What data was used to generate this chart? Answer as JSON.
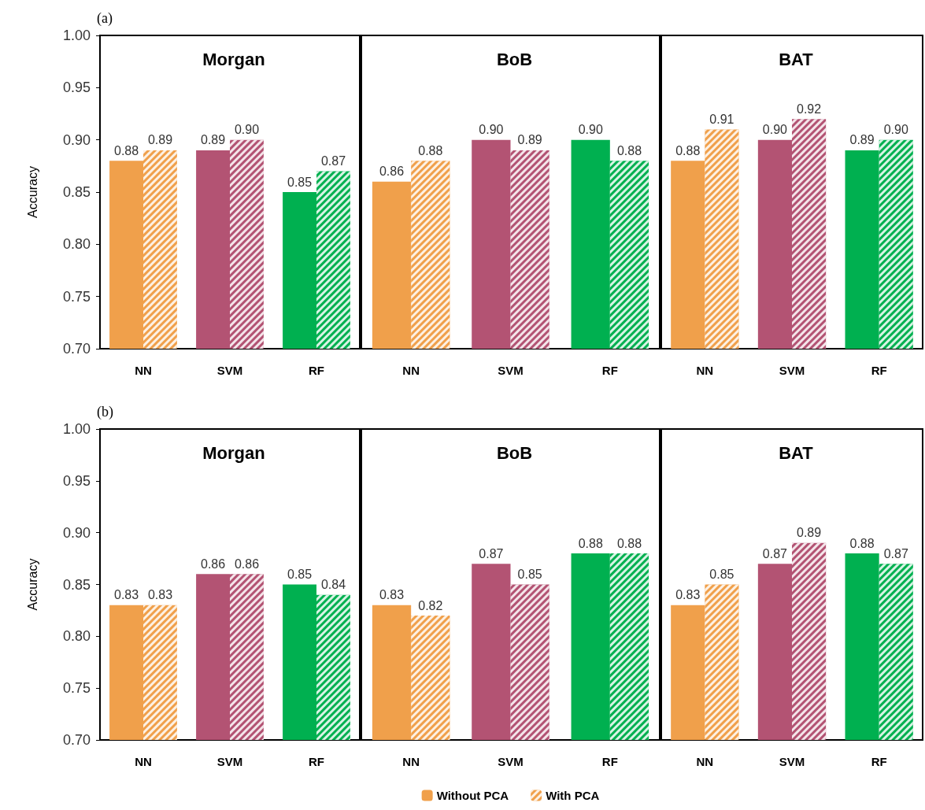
{
  "chart_data": [
    {
      "type": "bar",
      "title": "Morgan",
      "annotations": [
        "(a)"
      ],
      "ylabel": "Accuracy",
      "categories": [
        "NN",
        "SVM",
        "RF"
      ],
      "ylim": [
        0.7,
        1.0
      ],
      "yticks": [
        {
          "value": 0.7,
          "label": "0.70"
        },
        {
          "value": 0.75,
          "label": "0.75"
        },
        {
          "value": 0.8,
          "label": "0.80"
        },
        {
          "value": 0.85,
          "label": "0.85"
        },
        {
          "value": 0.9,
          "label": "0.90"
        },
        {
          "value": 0.95,
          "label": "0.95"
        },
        {
          "value": 1.0,
          "label": "1.00"
        }
      ],
      "series": [
        {
          "colors": [
            "#f0a04b",
            "#b35373",
            "#00b050"
          ],
          "values": [
            0.88,
            0.89,
            0.85
          ],
          "value_labels": [
            "0.88",
            "0.89",
            "0.85"
          ]
        },
        {
          "colors": [
            "#f0a04b",
            "#b35373",
            "#00b050"
          ],
          "values": [
            0.89,
            0.9,
            0.87
          ],
          "value_labels": [
            "0.89",
            "0.90",
            "0.87"
          ]
        }
      ]
    },
    {
      "type": "bar",
      "title": "BoB",
      "categories": [
        "NN",
        "SVM",
        "RF"
      ],
      "ylim": [
        0.7,
        1.0
      ],
      "tick_labels": "x",
      "series": [
        {
          "colors": [
            "#f0a04b",
            "#b35373",
            "#00b050"
          ],
          "values": [
            0.86,
            0.9,
            0.9
          ],
          "value_labels": [
            "0.86",
            "0.90",
            "0.90"
          ]
        },
        {
          "colors": [
            "#f0a04b",
            "#b35373",
            "#00b050"
          ],
          "values": [
            0.88,
            0.89,
            0.88
          ],
          "value_labels": [
            "0.88",
            "0.89",
            "0.88"
          ]
        }
      ]
    },
    {
      "type": "bar",
      "title": "BAT",
      "categories": [
        "NN",
        "SVM",
        "RF"
      ],
      "ylim": [
        0.7,
        1.0
      ],
      "tick_labels": "x",
      "series": [
        {
          "colors": [
            "#f0a04b",
            "#b35373",
            "#00b050"
          ],
          "values": [
            0.88,
            0.9,
            0.89
          ],
          "value_labels": [
            "0.88",
            "0.90",
            "0.89"
          ]
        },
        {
          "colors": [
            "#f0a04b",
            "#b35373",
            "#00b050"
          ],
          "values": [
            0.91,
            0.92,
            0.9
          ],
          "value_labels": [
            "0.91",
            "0.92",
            "0.90"
          ]
        }
      ]
    },
    {
      "type": "bar",
      "title": "Morgan",
      "annotations": [
        "(b)"
      ],
      "ylabel": "Accuracy",
      "categories": [
        "NN",
        "SVM",
        "RF"
      ],
      "ylim": [
        0.7,
        1.0
      ],
      "yticks": [
        {
          "value": 0.7,
          "label": "0.70"
        },
        {
          "value": 0.75,
          "label": "0.75"
        },
        {
          "value": 0.8,
          "label": "0.80"
        },
        {
          "value": 0.85,
          "label": "0.85"
        },
        {
          "value": 0.9,
          "label": "0.90"
        },
        {
          "value": 0.95,
          "label": "0.95"
        },
        {
          "value": 1.0,
          "label": "1.00"
        }
      ],
      "series": [
        {
          "colors": [
            "#f0a04b",
            "#b35373",
            "#00b050"
          ],
          "values": [
            0.83,
            0.86,
            0.85
          ],
          "value_labels": [
            "0.83",
            "0.86",
            "0.85"
          ]
        },
        {
          "colors": [
            "#f0a04b",
            "#b35373",
            "#00b050"
          ],
          "values": [
            0.83,
            0.86,
            0.84
          ],
          "value_labels": [
            "0.83",
            "0.86",
            "0.84"
          ]
        }
      ]
    },
    {
      "type": "bar",
      "title": "BoB",
      "categories": [
        "NN",
        "SVM",
        "RF"
      ],
      "ylim": [
        0.7,
        1.0
      ],
      "tick_labels": "x",
      "legend": "bottom",
      "series": [
        {
          "name": "Without PCA",
          "color": "#f0a04b",
          "colors": [
            "#f0a04b",
            "#b35373",
            "#00b050"
          ],
          "values": [
            0.83,
            0.87,
            0.88
          ],
          "value_labels": [
            "0.83",
            "0.87",
            "0.88"
          ]
        },
        {
          "name": "With PCA",
          "color": "#f0a04b",
          "colors": [
            "#f0a04b",
            "#b35373",
            "#00b050"
          ],
          "values": [
            0.82,
            0.85,
            0.88
          ],
          "value_labels": [
            "0.82",
            "0.85",
            "0.88"
          ]
        }
      ]
    },
    {
      "type": "bar",
      "title": "BAT",
      "categories": [
        "NN",
        "SVM",
        "RF"
      ],
      "ylim": [
        0.7,
        1.0
      ],
      "tick_labels": "x",
      "series": [
        {
          "colors": [
            "#f0a04b",
            "#b35373",
            "#00b050"
          ],
          "values": [
            0.83,
            0.87,
            0.88
          ],
          "value_labels": [
            "0.83",
            "0.87",
            "0.88"
          ]
        },
        {
          "colors": [
            "#f0a04b",
            "#b35373",
            "#00b050"
          ],
          "values": [
            0.85,
            0.89,
            0.87
          ],
          "value_labels": [
            "0.85",
            "0.89",
            "0.87"
          ]
        }
      ]
    }
  ]
}
